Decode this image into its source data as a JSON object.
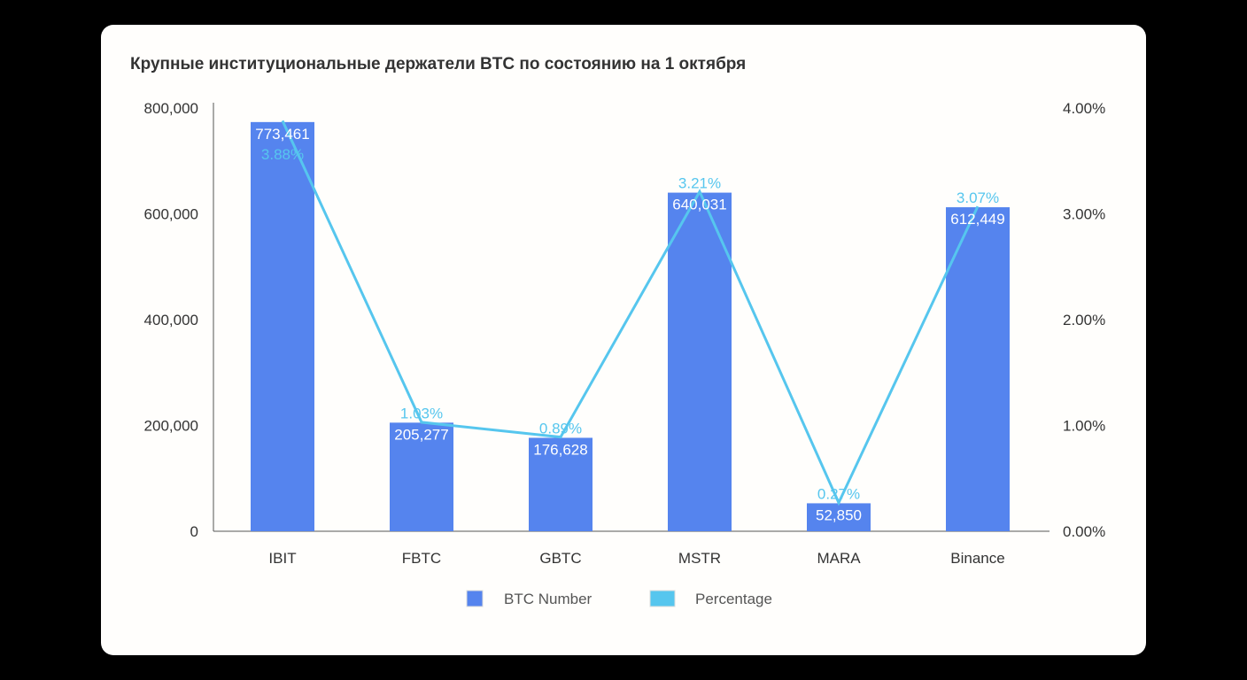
{
  "chart_data": {
    "type": "bar",
    "title": "Крупные институциональные держатели BTC по состоянию на 1 октября",
    "categories": [
      "IBIT",
      "FBTC",
      "GBTC",
      "MSTR",
      "MARA",
      "Binance"
    ],
    "series": [
      {
        "name": "BTC Number",
        "type": "bar",
        "axis": "left",
        "color": "#5584ee",
        "values": [
          773461,
          205277,
          176628,
          640031,
          52850,
          612449
        ],
        "labels": [
          "773,461",
          "205,277",
          "176,628",
          "640,031",
          "52,850",
          "612,449"
        ]
      },
      {
        "name": "Percentage",
        "type": "line",
        "axis": "right",
        "color": "#56c6ee",
        "values": [
          3.88,
          1.03,
          0.89,
          3.21,
          0.27,
          3.07
        ],
        "labels": [
          "3.88%",
          "1.03%",
          "0.89%",
          "3.21%",
          "0.27%",
          "3.07%"
        ]
      }
    ],
    "ylim": [
      0,
      800000
    ],
    "y2lim": [
      0,
      4
    ],
    "yticks": [
      "0",
      "200,000",
      "400,000",
      "600,000",
      "800,000"
    ],
    "y2ticks": [
      "0.00%",
      "1.00%",
      "2.00%",
      "3.00%",
      "4.00%"
    ],
    "legend_position": "bottom",
    "grid": false
  }
}
